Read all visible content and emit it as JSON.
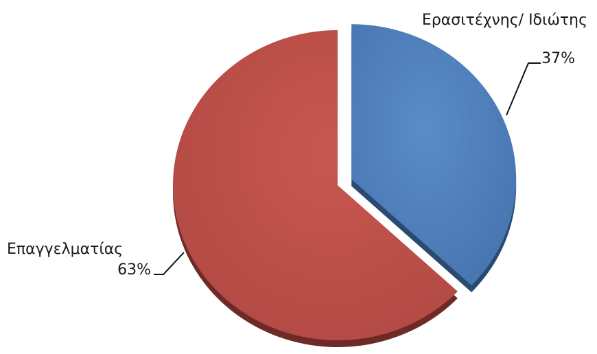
{
  "chart_data": {
    "type": "pie",
    "title": "",
    "categories": [
      "Ερασιτέχνης/ Ιδιώτης",
      "Επαγγελματίας"
    ],
    "values": [
      37,
      63
    ],
    "value_labels": [
      "37%",
      "63%"
    ],
    "colors": [
      "#4f81bd",
      "#c0504d"
    ],
    "exploded": [
      true,
      false
    ],
    "style": "3d-tilted",
    "legend": "none"
  }
}
